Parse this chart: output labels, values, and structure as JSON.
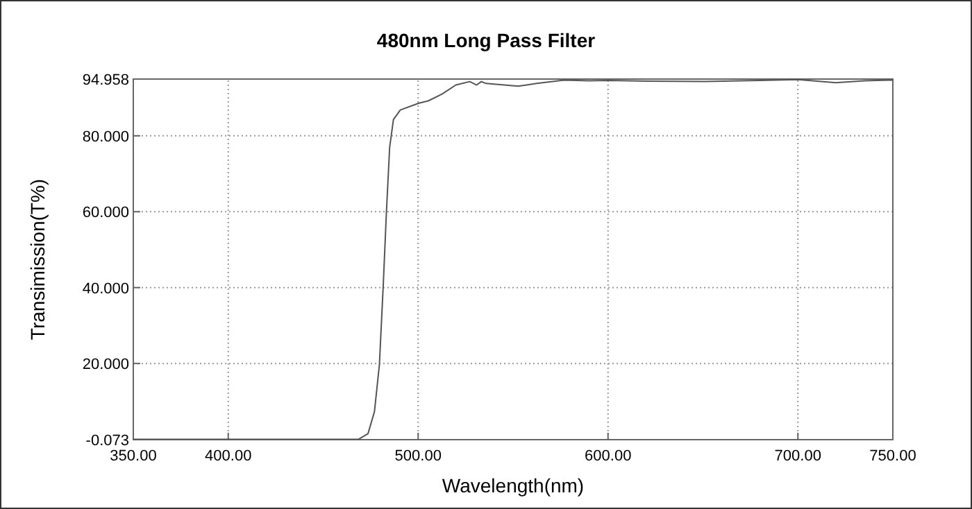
{
  "chart_data": {
    "type": "line",
    "title": "480nm Long Pass Filter",
    "xlabel": "Wavelength(nm)",
    "ylabel": "Transimission(T%)",
    "xlim": [
      350,
      750
    ],
    "ylim": [
      -0.073,
      94.958
    ],
    "xticks": [
      {
        "value": 350,
        "label": "350.00"
      },
      {
        "value": 400,
        "label": "400.00"
      },
      {
        "value": 500,
        "label": "500.00"
      },
      {
        "value": 600,
        "label": "600.00"
      },
      {
        "value": 700,
        "label": "700.00"
      },
      {
        "value": 750,
        "label": "750.00"
      }
    ],
    "yticks": [
      {
        "value": -0.073,
        "label": "-0.073"
      },
      {
        "value": 20,
        "label": "20.000"
      },
      {
        "value": 40,
        "label": "40.000"
      },
      {
        "value": 60,
        "label": "60.000"
      },
      {
        "value": 80,
        "label": "80.000"
      },
      {
        "value": 94.958,
        "label": "94.958"
      }
    ],
    "grid": true,
    "line_style": "solid",
    "marker": "none",
    "series": [
      {
        "color": "#555555",
        "x": [
          350,
          400,
          450,
          468.5,
          473.6,
          477,
          479.6,
          481.6,
          483.3,
          485,
          487,
          490.6,
          500.4,
          505.3,
          512.6,
          519.9,
          527.2,
          530.8,
          533.3,
          535.7,
          552.7,
          562.5,
          577,
          590,
          600,
          620,
          650,
          680,
          700,
          720,
          735,
          750
        ],
        "values": [
          0,
          0,
          0,
          0,
          1.5,
          7.3,
          19.7,
          40.3,
          59.9,
          77,
          84.3,
          86.8,
          88.6,
          89.2,
          91,
          93.4,
          94.3,
          93.4,
          94.3,
          93.8,
          93.1,
          93.8,
          94.7,
          94.5,
          94.6,
          94.4,
          94.3,
          94.6,
          94.8,
          94,
          94.5,
          94.7
        ]
      }
    ]
  }
}
